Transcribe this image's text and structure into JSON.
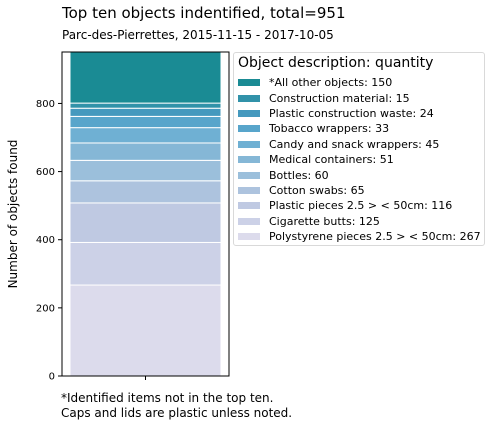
{
  "title": "Top ten objects indentified,  total=951",
  "subtitle": "Parc-des-Pierrettes, 2015-11-15 - 2017-10-05",
  "footnote": [
    "*Identified items not in the top ten.",
    "Caps and lids are plastic unless noted."
  ],
  "chart_data": {
    "type": "bar",
    "stacked": true,
    "categories": [
      ""
    ],
    "ylabel": "Number of objects found",
    "xlabel": "",
    "ylim": [
      0,
      951
    ],
    "yticks": [
      0,
      200,
      400,
      600,
      800
    ],
    "legend_title": "Object description: quantity",
    "legend_position": "right",
    "series": [
      {
        "name": "Polystyrene pieces 2.5 > < 50cm: 267",
        "values": [
          267
        ],
        "color": "#dcdbec"
      },
      {
        "name": "Cigarette butts: 125",
        "values": [
          125
        ],
        "color": "#ccd1e7"
      },
      {
        "name": "Plastic pieces 2.5 > < 50cm: 116",
        "values": [
          116
        ],
        "color": "#bfc9e2"
      },
      {
        "name": "Cotton swabs: 65",
        "values": [
          65
        ],
        "color": "#adc3de"
      },
      {
        "name": "Bottles: 60",
        "values": [
          60
        ],
        "color": "#9bbfdb"
      },
      {
        "name": "Medical containers: 51",
        "values": [
          51
        ],
        "color": "#85b7d6"
      },
      {
        "name": "Candy and snack wrappers: 45",
        "values": [
          45
        ],
        "color": "#6fb0d3"
      },
      {
        "name": "Tobacco wrappers: 33",
        "values": [
          33
        ],
        "color": "#58a5cb"
      },
      {
        "name": "Plastic construction waste: 24",
        "values": [
          24
        ],
        "color": "#4599be"
      },
      {
        "name": "Construction material: 15",
        "values": [
          15
        ],
        "color": "#3192a9"
      },
      {
        "name": "*All other objects: 150",
        "values": [
          150
        ],
        "color": "#1a8b94"
      }
    ]
  }
}
